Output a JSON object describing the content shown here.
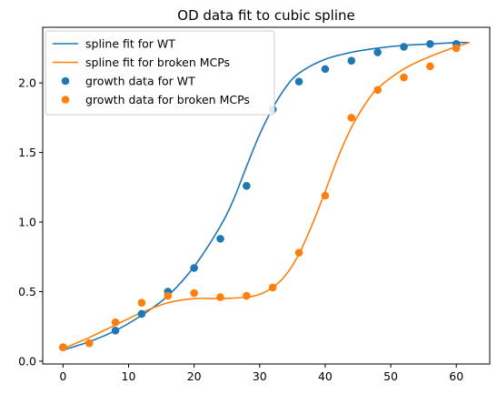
{
  "chart_data": {
    "type": "scatter",
    "title": "OD data fit to cubic spline",
    "xlabel": "",
    "ylabel": "",
    "xlim": [
      -3.1,
      65.1
    ],
    "ylim": [
      -0.02,
      2.4
    ],
    "x_ticks": [
      0,
      10,
      20,
      30,
      40,
      50,
      60
    ],
    "y_ticks": [
      0.0,
      0.5,
      1.0,
      1.5,
      2.0
    ],
    "grid": false,
    "legend_position": "top-left",
    "series": [
      {
        "name": "spline fit for WT",
        "kind": "line",
        "color": "#1f77b4",
        "x": [
          0,
          4,
          8,
          12,
          16,
          20,
          24,
          26,
          28,
          30,
          32,
          34,
          36,
          40,
          44,
          48,
          52,
          56,
          60,
          62
        ],
        "y": [
          0.08,
          0.14,
          0.22,
          0.33,
          0.47,
          0.68,
          0.97,
          1.16,
          1.4,
          1.63,
          1.82,
          1.97,
          2.07,
          2.17,
          2.22,
          2.25,
          2.27,
          2.28,
          2.29,
          2.29
        ]
      },
      {
        "name": "spline fit for broken MCPs",
        "kind": "line",
        "color": "#ff7f0e",
        "x": [
          0,
          4,
          8,
          12,
          16,
          20,
          24,
          28,
          30,
          32,
          34,
          36,
          38,
          40,
          42,
          44,
          46,
          48,
          52,
          56,
          60,
          62
        ],
        "y": [
          0.09,
          0.17,
          0.26,
          0.35,
          0.42,
          0.45,
          0.45,
          0.46,
          0.48,
          0.53,
          0.62,
          0.77,
          0.98,
          1.22,
          1.47,
          1.68,
          1.84,
          1.96,
          2.1,
          2.19,
          2.26,
          2.29
        ]
      },
      {
        "name": "growth data for WT",
        "kind": "scatter",
        "color": "#1f77b4",
        "x": [
          0,
          4,
          8,
          12,
          16,
          20,
          24,
          28,
          32,
          36,
          40,
          44,
          48,
          52,
          56,
          60
        ],
        "y": [
          0.1,
          0.13,
          0.22,
          0.34,
          0.5,
          0.67,
          0.88,
          1.26,
          1.81,
          2.01,
          2.1,
          2.16,
          2.22,
          2.26,
          2.28,
          2.28
        ]
      },
      {
        "name": "growth data for broken MCPs",
        "kind": "scatter",
        "color": "#ff7f0e",
        "x": [
          0,
          4,
          8,
          12,
          16,
          20,
          24,
          28,
          32,
          36,
          40,
          44,
          48,
          52,
          56,
          60
        ],
        "y": [
          0.1,
          0.13,
          0.28,
          0.42,
          0.47,
          0.49,
          0.46,
          0.47,
          0.53,
          0.78,
          1.19,
          1.75,
          1.95,
          2.04,
          2.12,
          2.25
        ]
      }
    ]
  }
}
